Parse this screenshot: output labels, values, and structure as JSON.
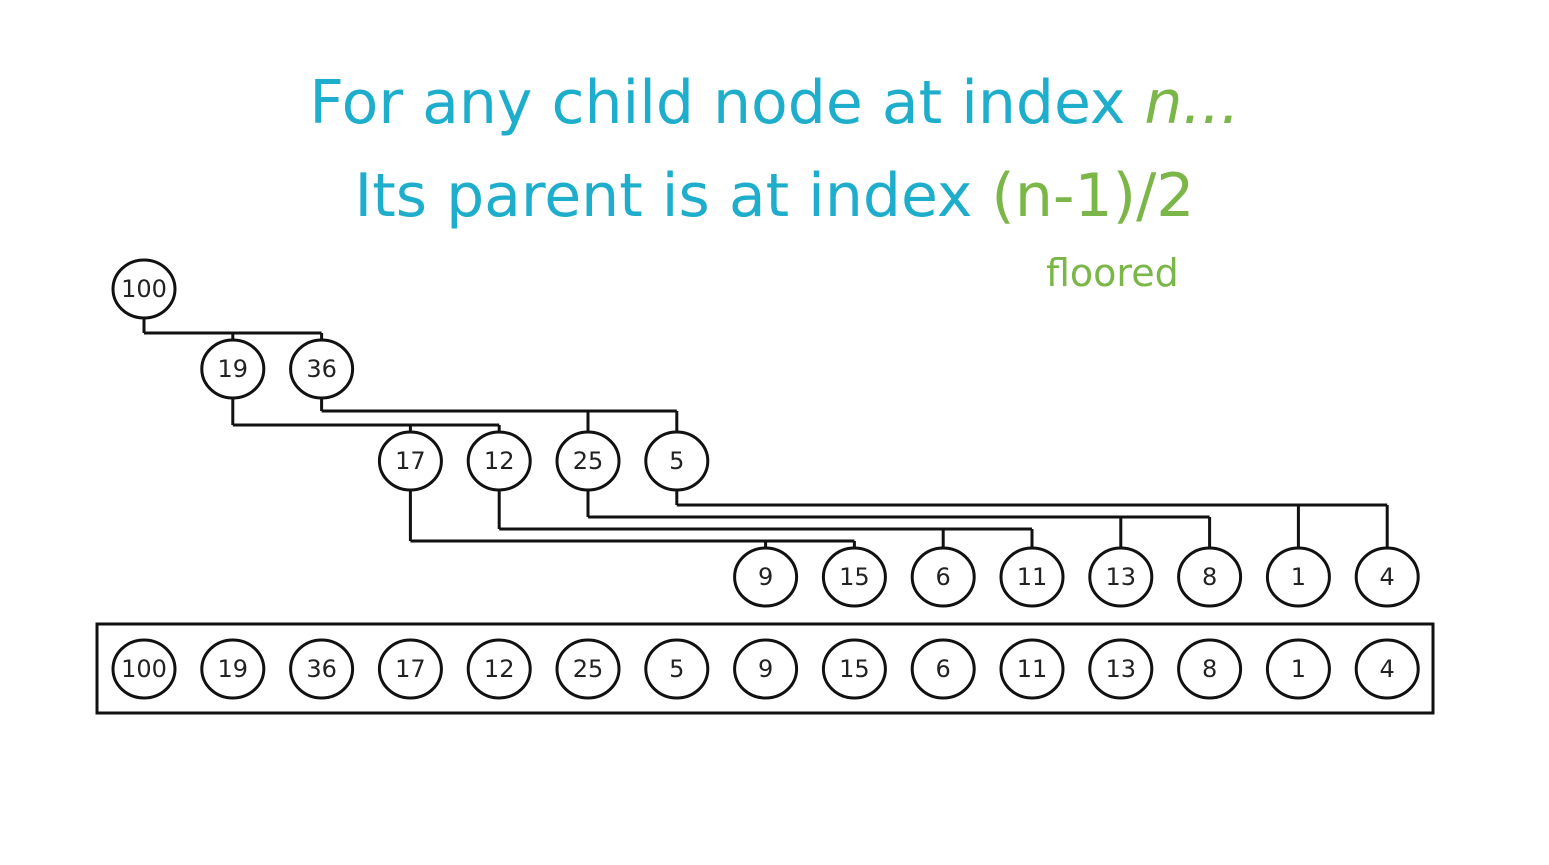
{
  "heading": {
    "line1_text": "For any child node at index ",
    "line1_var": "n...",
    "line2_text": "Its parent is at index ",
    "line2_formula": "(n-1)/2",
    "note": "floored"
  },
  "colors": {
    "heading": "#1eaecb",
    "accent": "#7ab648",
    "stroke": "#111111"
  },
  "heap": {
    "values": [
      "100",
      "19",
      "36",
      "17",
      "12",
      "25",
      "5",
      "9",
      "15",
      "6",
      "11",
      "13",
      "8",
      "1",
      "4"
    ]
  },
  "array": {
    "values": [
      "100",
      "19",
      "36",
      "17",
      "12",
      "25",
      "5",
      "9",
      "15",
      "6",
      "11",
      "13",
      "8",
      "1",
      "4"
    ]
  }
}
